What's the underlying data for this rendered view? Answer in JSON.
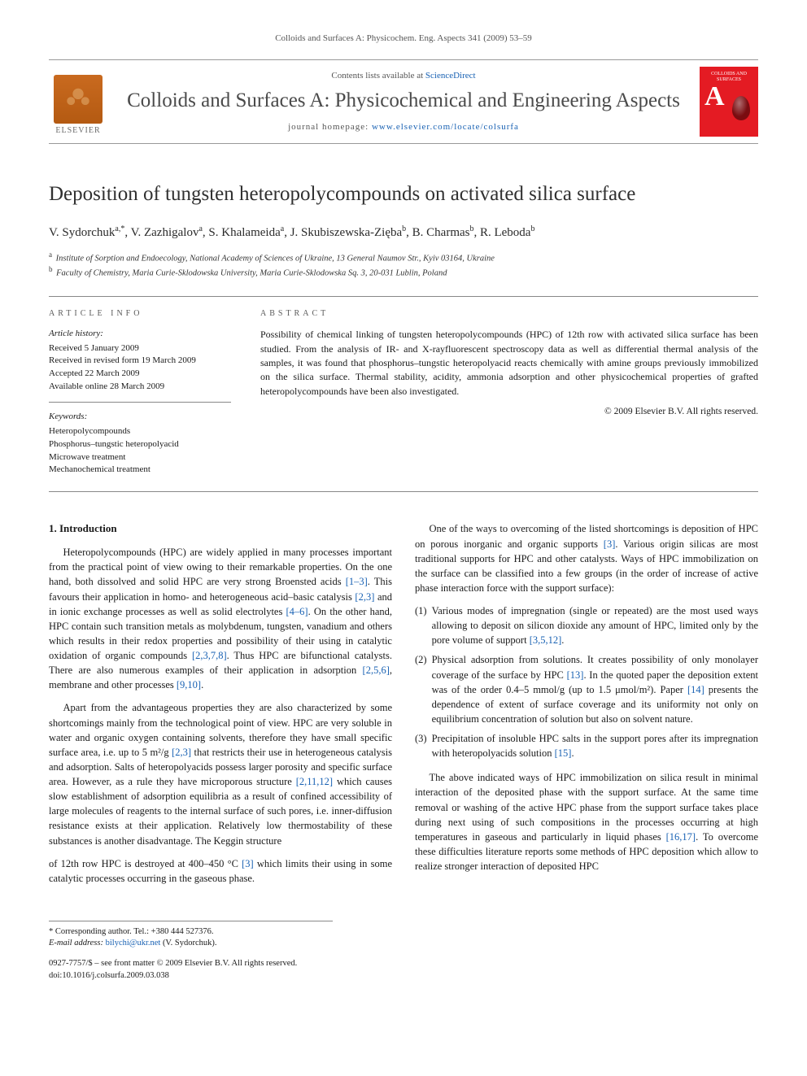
{
  "running_head": "Colloids and Surfaces A: Physicochem. Eng. Aspects 341 (2009) 53–59",
  "masthead": {
    "contents_prefix": "Contents lists available at ",
    "contents_link": "ScienceDirect",
    "journal_title": "Colloids and Surfaces A: Physicochemical and Engineering Aspects",
    "homepage_prefix": "journal homepage: ",
    "homepage_url": "www.elsevier.com/locate/colsurfa",
    "publisher_word": "ELSEVIER",
    "cover_label": "COLLOIDS AND SURFACES",
    "cover_letter": "A"
  },
  "article": {
    "title": "Deposition of tungsten heteropolycompounds on activated silica surface",
    "authors_html": "V. Sydorchuk<sup>a,*</sup>, V. Zazhigalov<sup>a</sup>, S. Khalameida<sup>a</sup>, J. Skubiszewska-Zięba<sup>b</sup>, B. Charmas<sup>b</sup>, R. Leboda<sup>b</sup>",
    "affiliations": [
      {
        "sup": "a",
        "text": "Institute of Sorption and Endoecology, National Academy of Sciences of Ukraine, 13 General Naumov Str., Kyiv 03164, Ukraine"
      },
      {
        "sup": "b",
        "text": "Faculty of Chemistry, Maria Curie-Sklodowska University, Maria Curie-Sklodowska Sq. 3, 20-031 Lublin, Poland"
      }
    ]
  },
  "info": {
    "section_label": "ARTICLE INFO",
    "history_head": "Article history:",
    "history": [
      "Received 5 January 2009",
      "Received in revised form 19 March 2009",
      "Accepted 22 March 2009",
      "Available online 28 March 2009"
    ],
    "keywords_head": "Keywords:",
    "keywords": [
      "Heteropolycompounds",
      "Phosphorus–tungstic heteropolyacid",
      "Microwave treatment",
      "Mechanochemical treatment"
    ]
  },
  "abstract": {
    "section_label": "ABSTRACT",
    "text": "Possibility of chemical linking of tungsten heteropolycompounds (HPC) of 12th row with activated silica surface has been studied. From the analysis of IR- and X-rayfluorescent spectroscopy data as well as differential thermal analysis of the samples, it was found that phosphorus–tungstic heteropolyacid reacts chemically with amine groups previously immobilized on the silica surface. Thermal stability, acidity, ammonia adsorption and other physicochemical properties of grafted heteropolycompounds have been also investigated.",
    "copyright": "© 2009 Elsevier B.V. All rights reserved."
  },
  "body": {
    "heading": "1. Introduction",
    "p1a": "Heteropolycompounds (HPC) are widely applied in many processes important from the practical point of view owing to their remarkable properties. On the one hand, both dissolved and solid HPC are very strong Broensted acids ",
    "r1": "[1–3]",
    "p1b": ". This favours their application in homo- and heterogeneous acid–basic catalysis ",
    "r2": "[2,3]",
    "p1c": " and in ionic exchange processes as well as solid electrolytes ",
    "r3": "[4–6]",
    "p1d": ". On the other hand, HPC contain such transition metals as molybdenum, tungsten, vanadium and others which results in their redox properties and possibility of their using in catalytic oxidation of organic compounds ",
    "r4": "[2,3,7,8]",
    "p1e": ". Thus HPC are bifunctional catalysts. There are also numerous examples of their application in adsorption ",
    "r5": "[2,5,6]",
    "p1f": ", membrane and other processes ",
    "r6": "[9,10]",
    "p1g": ".",
    "p2a": "Apart from the advantageous properties they are also characterized by some shortcomings mainly from the technological point of view. HPC are very soluble in water and organic oxygen containing solvents, therefore they have small specific surface area, i.e. up to 5 m²/g ",
    "r7": "[2,3]",
    "p2b": " that restricts their use in heterogeneous catalysis and adsorption. Salts of heteropolyacids possess larger porosity and specific surface area. However, as a rule they have microporous structure ",
    "r8": "[2,11,12]",
    "p2c": " which causes slow establishment of adsorption equilibria as a result of confined accessibility of large molecules of reagents to the internal surface of such pores, i.e. inner-diffusion resistance exists at their application. Relatively low thermostability of these substances is another disadvantage. The Keggin structure",
    "p3a": "of 12th row HPC is destroyed at 400–450 °C ",
    "r9": "[3]",
    "p3b": " which limits their using in some catalytic processes occurring in the gaseous phase.",
    "p4a": "One of the ways to overcoming of the listed shortcomings is deposition of HPC on porous inorganic and organic supports ",
    "r10": "[3]",
    "p4b": ". Various origin silicas are most traditional supports for HPC and other catalysts. Ways of HPC immobilization on the surface can be classified into a few groups (in the order of increase of active phase interaction force with the support surface):",
    "enum": [
      {
        "n": "(1)",
        "t1": "Various modes of impregnation (single or repeated) are the most used ways allowing to deposit on silicon dioxide any amount of HPC, limited only by the pore volume of support ",
        "r": "[3,5,12]",
        "t2": "."
      },
      {
        "n": "(2)",
        "t1": "Physical adsorption from solutions. It creates possibility of only monolayer coverage of the surface by HPC ",
        "r": "[13]",
        "t2": ". In the quoted paper the deposition extent was of the order 0.4–5 mmol/g (up to 1.5 μmol/m²). Paper ",
        "r2": "[14]",
        "t3": " presents the dependence of extent of surface coverage and its uniformity not only on equilibrium concentration of solution but also on solvent nature."
      },
      {
        "n": "(3)",
        "t1": "Precipitation of insoluble HPC salts in the support pores after its impregnation with heteropolyacids solution ",
        "r": "[15]",
        "t2": "."
      }
    ],
    "p5a": "The above indicated ways of HPC immobilization on silica result in minimal interaction of the deposited phase with the support surface. At the same time removal or washing of the active HPC phase from the support surface takes place during next using of such compositions in the processes occurring at high temperatures in gaseous and particularly in liquid phases ",
    "r11": "[16,17]",
    "p5b": ". To overcome these difficulties literature reports some methods of HPC deposition which allow to realize stronger interaction of deposited HPC"
  },
  "footer": {
    "corr_label": "* Corresponding author. Tel.: +380 444 527376.",
    "email_label": "E-mail address: ",
    "email": "bilychi@ukr.net",
    "email_suffix": " (V. Sydorchuk).",
    "issn_line": "0927-7757/$ – see front matter © 2009 Elsevier B.V. All rights reserved.",
    "doi_line": "doi:10.1016/j.colsurfa.2009.03.038"
  },
  "colors": {
    "link": "#1861b3",
    "text": "#1a1a1a",
    "rule": "#888888",
    "elsevier_orange": "#c96a1f",
    "cover_red": "#e41b23"
  }
}
